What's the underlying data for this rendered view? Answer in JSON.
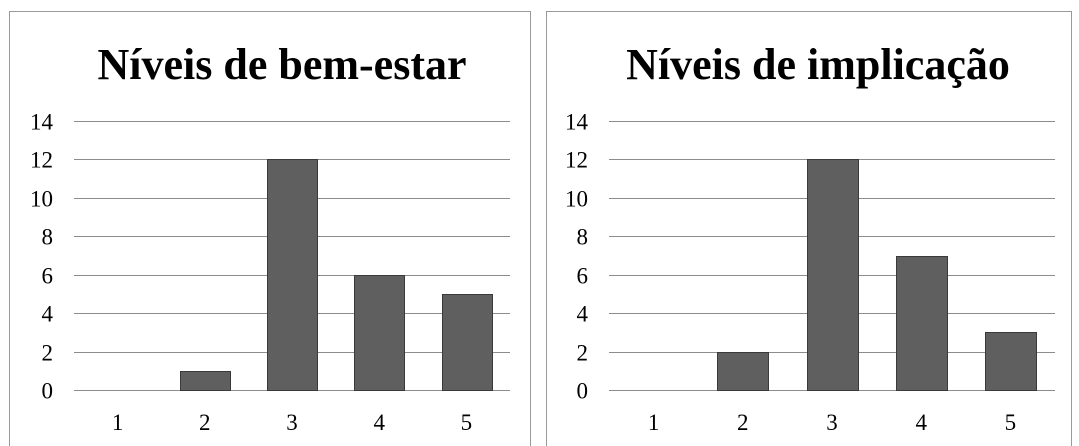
{
  "chart_data": [
    {
      "type": "bar",
      "title": "Níveis de bem-estar",
      "categories": [
        "1",
        "2",
        "3",
        "4",
        "5"
      ],
      "values": [
        0,
        1,
        12,
        6,
        5
      ],
      "ylim": [
        0,
        14
      ],
      "yticks": [
        "0",
        "2",
        "4",
        "6",
        "8",
        "10",
        "12",
        "14"
      ],
      "xlabel": "",
      "ylabel": "",
      "grid": true,
      "legend": "none",
      "bar_color": "#5f5f5f"
    },
    {
      "type": "bar",
      "title": "Níveis de implicação",
      "categories": [
        "1",
        "2",
        "3",
        "4",
        "5"
      ],
      "values": [
        0,
        2,
        12,
        7,
        3
      ],
      "ylim": [
        0,
        14
      ],
      "yticks": [
        "0",
        "2",
        "4",
        "6",
        "8",
        "10",
        "12",
        "14"
      ],
      "xlabel": "",
      "ylabel": "",
      "grid": true,
      "legend": "none",
      "bar_color": "#5f5f5f"
    }
  ]
}
